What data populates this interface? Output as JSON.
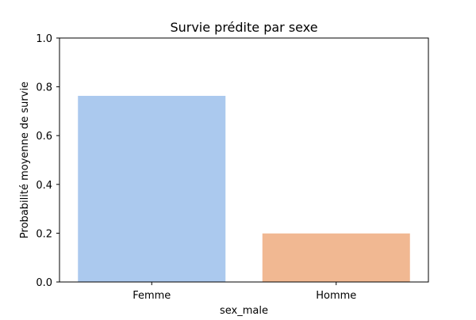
{
  "chart_data": {
    "type": "bar",
    "title": "Survie prédite par sexe",
    "xlabel": "sex_male",
    "ylabel": "Probabilité moyenne de survie",
    "categories": [
      "Femme",
      "Homme"
    ],
    "values": [
      0.763,
      0.199
    ],
    "colors": [
      "#abc9ee",
      "#f1b892"
    ],
    "ylim": [
      0,
      1.0
    ],
    "yticks": [
      "0.0",
      "0.2",
      "0.4",
      "0.6",
      "0.8",
      "1.0"
    ],
    "grid": false,
    "legend": "none"
  }
}
